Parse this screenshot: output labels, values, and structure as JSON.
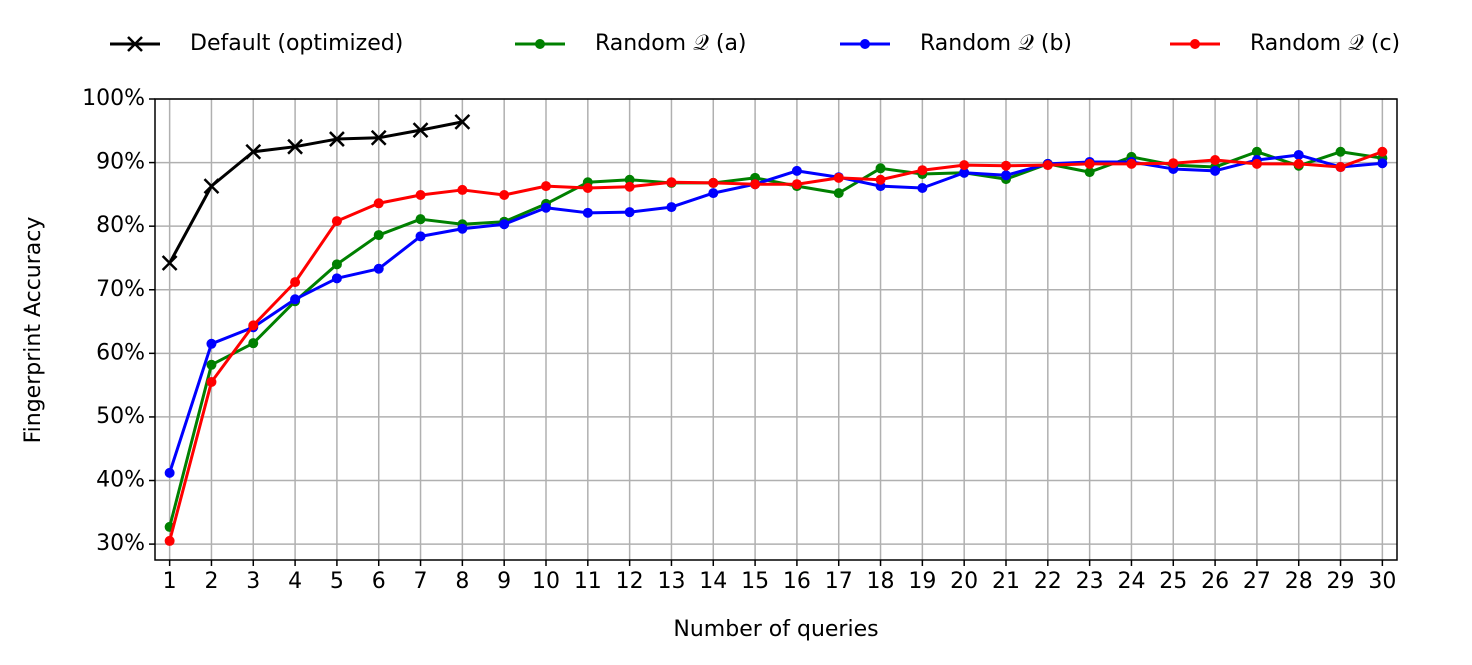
{
  "chart_data": {
    "type": "line",
    "xlabel": "Number of queries",
    "ylabel": "Fingerprint Accuracy",
    "x": [
      1,
      2,
      3,
      4,
      5,
      6,
      7,
      8,
      9,
      10,
      11,
      12,
      13,
      14,
      15,
      16,
      17,
      18,
      19,
      20,
      21,
      22,
      23,
      24,
      25,
      26,
      27,
      28,
      29,
      30
    ],
    "xlim": [
      0.65,
      30.35
    ],
    "xticks": [
      1,
      2,
      3,
      4,
      5,
      6,
      7,
      8,
      9,
      10,
      11,
      12,
      13,
      14,
      15,
      16,
      17,
      18,
      19,
      20,
      21,
      22,
      23,
      24,
      25,
      26,
      27,
      28,
      29,
      30
    ],
    "ylim": [
      27.5,
      100
    ],
    "yticks": [
      {
        "value": 30,
        "label": "30%"
      },
      {
        "value": 40,
        "label": "40%"
      },
      {
        "value": 50,
        "label": "50%"
      },
      {
        "value": 60,
        "label": "60%"
      },
      {
        "value": 70,
        "label": "70%"
      },
      {
        "value": 80,
        "label": "80%"
      },
      {
        "value": 90,
        "label": "90%"
      },
      {
        "value": 100,
        "label": "100%"
      }
    ],
    "grid": true,
    "legend": "top",
    "series": [
      {
        "name": "Default (optimized)",
        "color": "#000000",
        "marker": "x",
        "values": [
          74.2,
          86.3,
          91.7,
          92.5,
          93.7,
          93.9,
          95.1,
          96.4,
          null,
          null,
          null,
          null,
          null,
          null,
          null,
          null,
          null,
          null,
          null,
          null,
          null,
          null,
          null,
          null,
          null,
          null,
          null,
          null,
          null,
          null
        ]
      },
      {
        "name": "Random 𝒬 (a)",
        "color": "#008000",
        "marker": "o",
        "values": [
          32.7,
          58.2,
          61.6,
          68.2,
          74.0,
          78.6,
          81.1,
          80.3,
          80.7,
          83.5,
          86.9,
          87.3,
          86.8,
          86.8,
          87.6,
          86.3,
          85.2,
          89.1,
          88.2,
          88.4,
          87.4,
          89.8,
          88.5,
          90.9,
          89.6,
          89.3,
          91.7,
          89.5,
          91.7,
          90.7
        ]
      },
      {
        "name": "Random 𝒬 (b)",
        "color": "#0000ff",
        "marker": "o",
        "values": [
          41.2,
          61.5,
          64.1,
          68.5,
          71.8,
          73.3,
          78.4,
          79.6,
          80.3,
          82.9,
          82.1,
          82.2,
          83.0,
          85.2,
          86.6,
          88.7,
          87.7,
          86.3,
          86.0,
          88.4,
          88.0,
          89.8,
          90.1,
          90.1,
          89.0,
          88.7,
          90.4,
          91.2,
          89.3,
          89.9
        ]
      },
      {
        "name": "Random 𝒬 (c)",
        "color": "#ff0000",
        "marker": "o",
        "values": [
          30.5,
          55.5,
          64.4,
          71.2,
          80.8,
          83.6,
          84.9,
          85.7,
          84.9,
          86.3,
          86.0,
          86.2,
          86.9,
          86.8,
          86.6,
          86.6,
          87.6,
          87.3,
          88.8,
          89.6,
          89.5,
          89.6,
          89.8,
          89.8,
          89.9,
          90.4,
          89.8,
          89.8,
          89.3,
          91.7
        ]
      }
    ]
  }
}
